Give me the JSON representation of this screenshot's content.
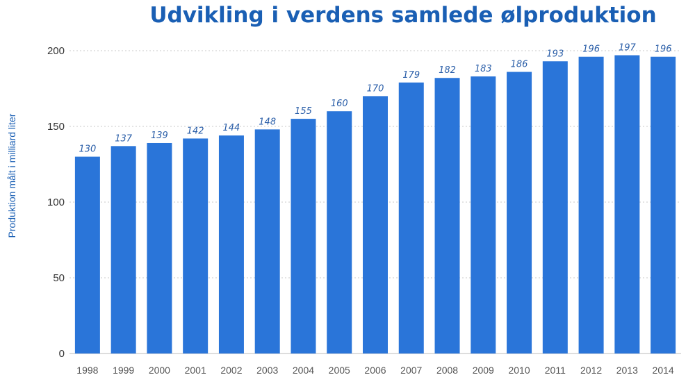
{
  "chart_data": {
    "type": "bar",
    "title": "Udvikling i verdens samlede ølproduktion",
    "ylabel": "Produktion målt i milliard liter",
    "xlabel": "",
    "categories": [
      "1998",
      "1999",
      "2000",
      "2001",
      "2002",
      "2003",
      "2004",
      "2005",
      "2006",
      "2007",
      "2008",
      "2009",
      "2010",
      "2011",
      "2012",
      "2013",
      "2014"
    ],
    "values": [
      130,
      137,
      139,
      142,
      144,
      148,
      155,
      160,
      170,
      179,
      182,
      183,
      186,
      193,
      196,
      197,
      196
    ],
    "ylim": [
      0,
      200
    ],
    "yticks": [
      0,
      50,
      100,
      150,
      200
    ],
    "grid": true,
    "bar_color": "#2a75d9",
    "title_color": "#1a5fb4",
    "label_color": "#2a5ea8"
  }
}
